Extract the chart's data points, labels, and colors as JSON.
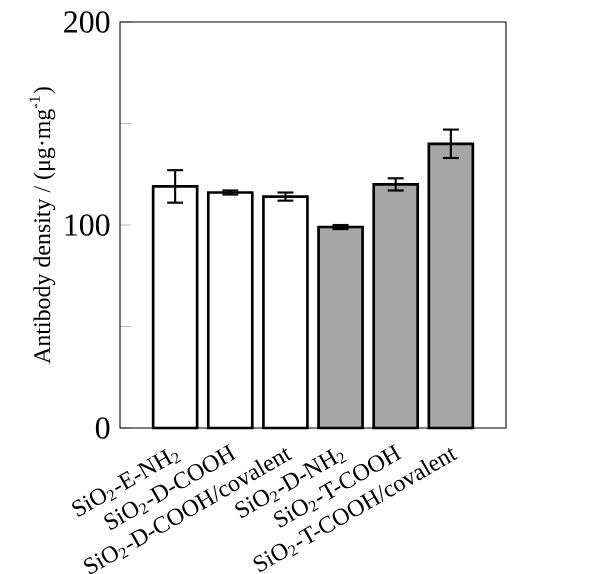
{
  "chart_data": {
    "type": "bar",
    "ylabel": "Antibody density / (μg·mg$^{-1}$)",
    "categories": [
      "SiO$_{2}$-E-NH$_{2}$",
      "SiO$_{2}$-D-COOH",
      "SiO$_{2}$-D-COOH/covalent",
      "SiO$_{2}$-D-NH$_{2}$",
      "SiO$_{2}$-T-COOH",
      "SiO$_{2}$-T-COOH/covalent"
    ],
    "values": [
      119,
      116,
      114,
      99,
      120,
      140
    ],
    "errors": [
      8,
      1,
      2,
      1,
      3,
      7
    ],
    "colors": [
      "#ffffff",
      "#ffffff",
      "#ffffff",
      "#a6a6a6",
      "#a6a6a6",
      "#a6a6a6"
    ],
    "ylim": [
      0,
      200
    ],
    "yticks": [
      0,
      {
        "value": 50,
        "label": null
      },
      100,
      {
        "value": 150,
        "label": null
      },
      200
    ],
    "grid": false
  }
}
